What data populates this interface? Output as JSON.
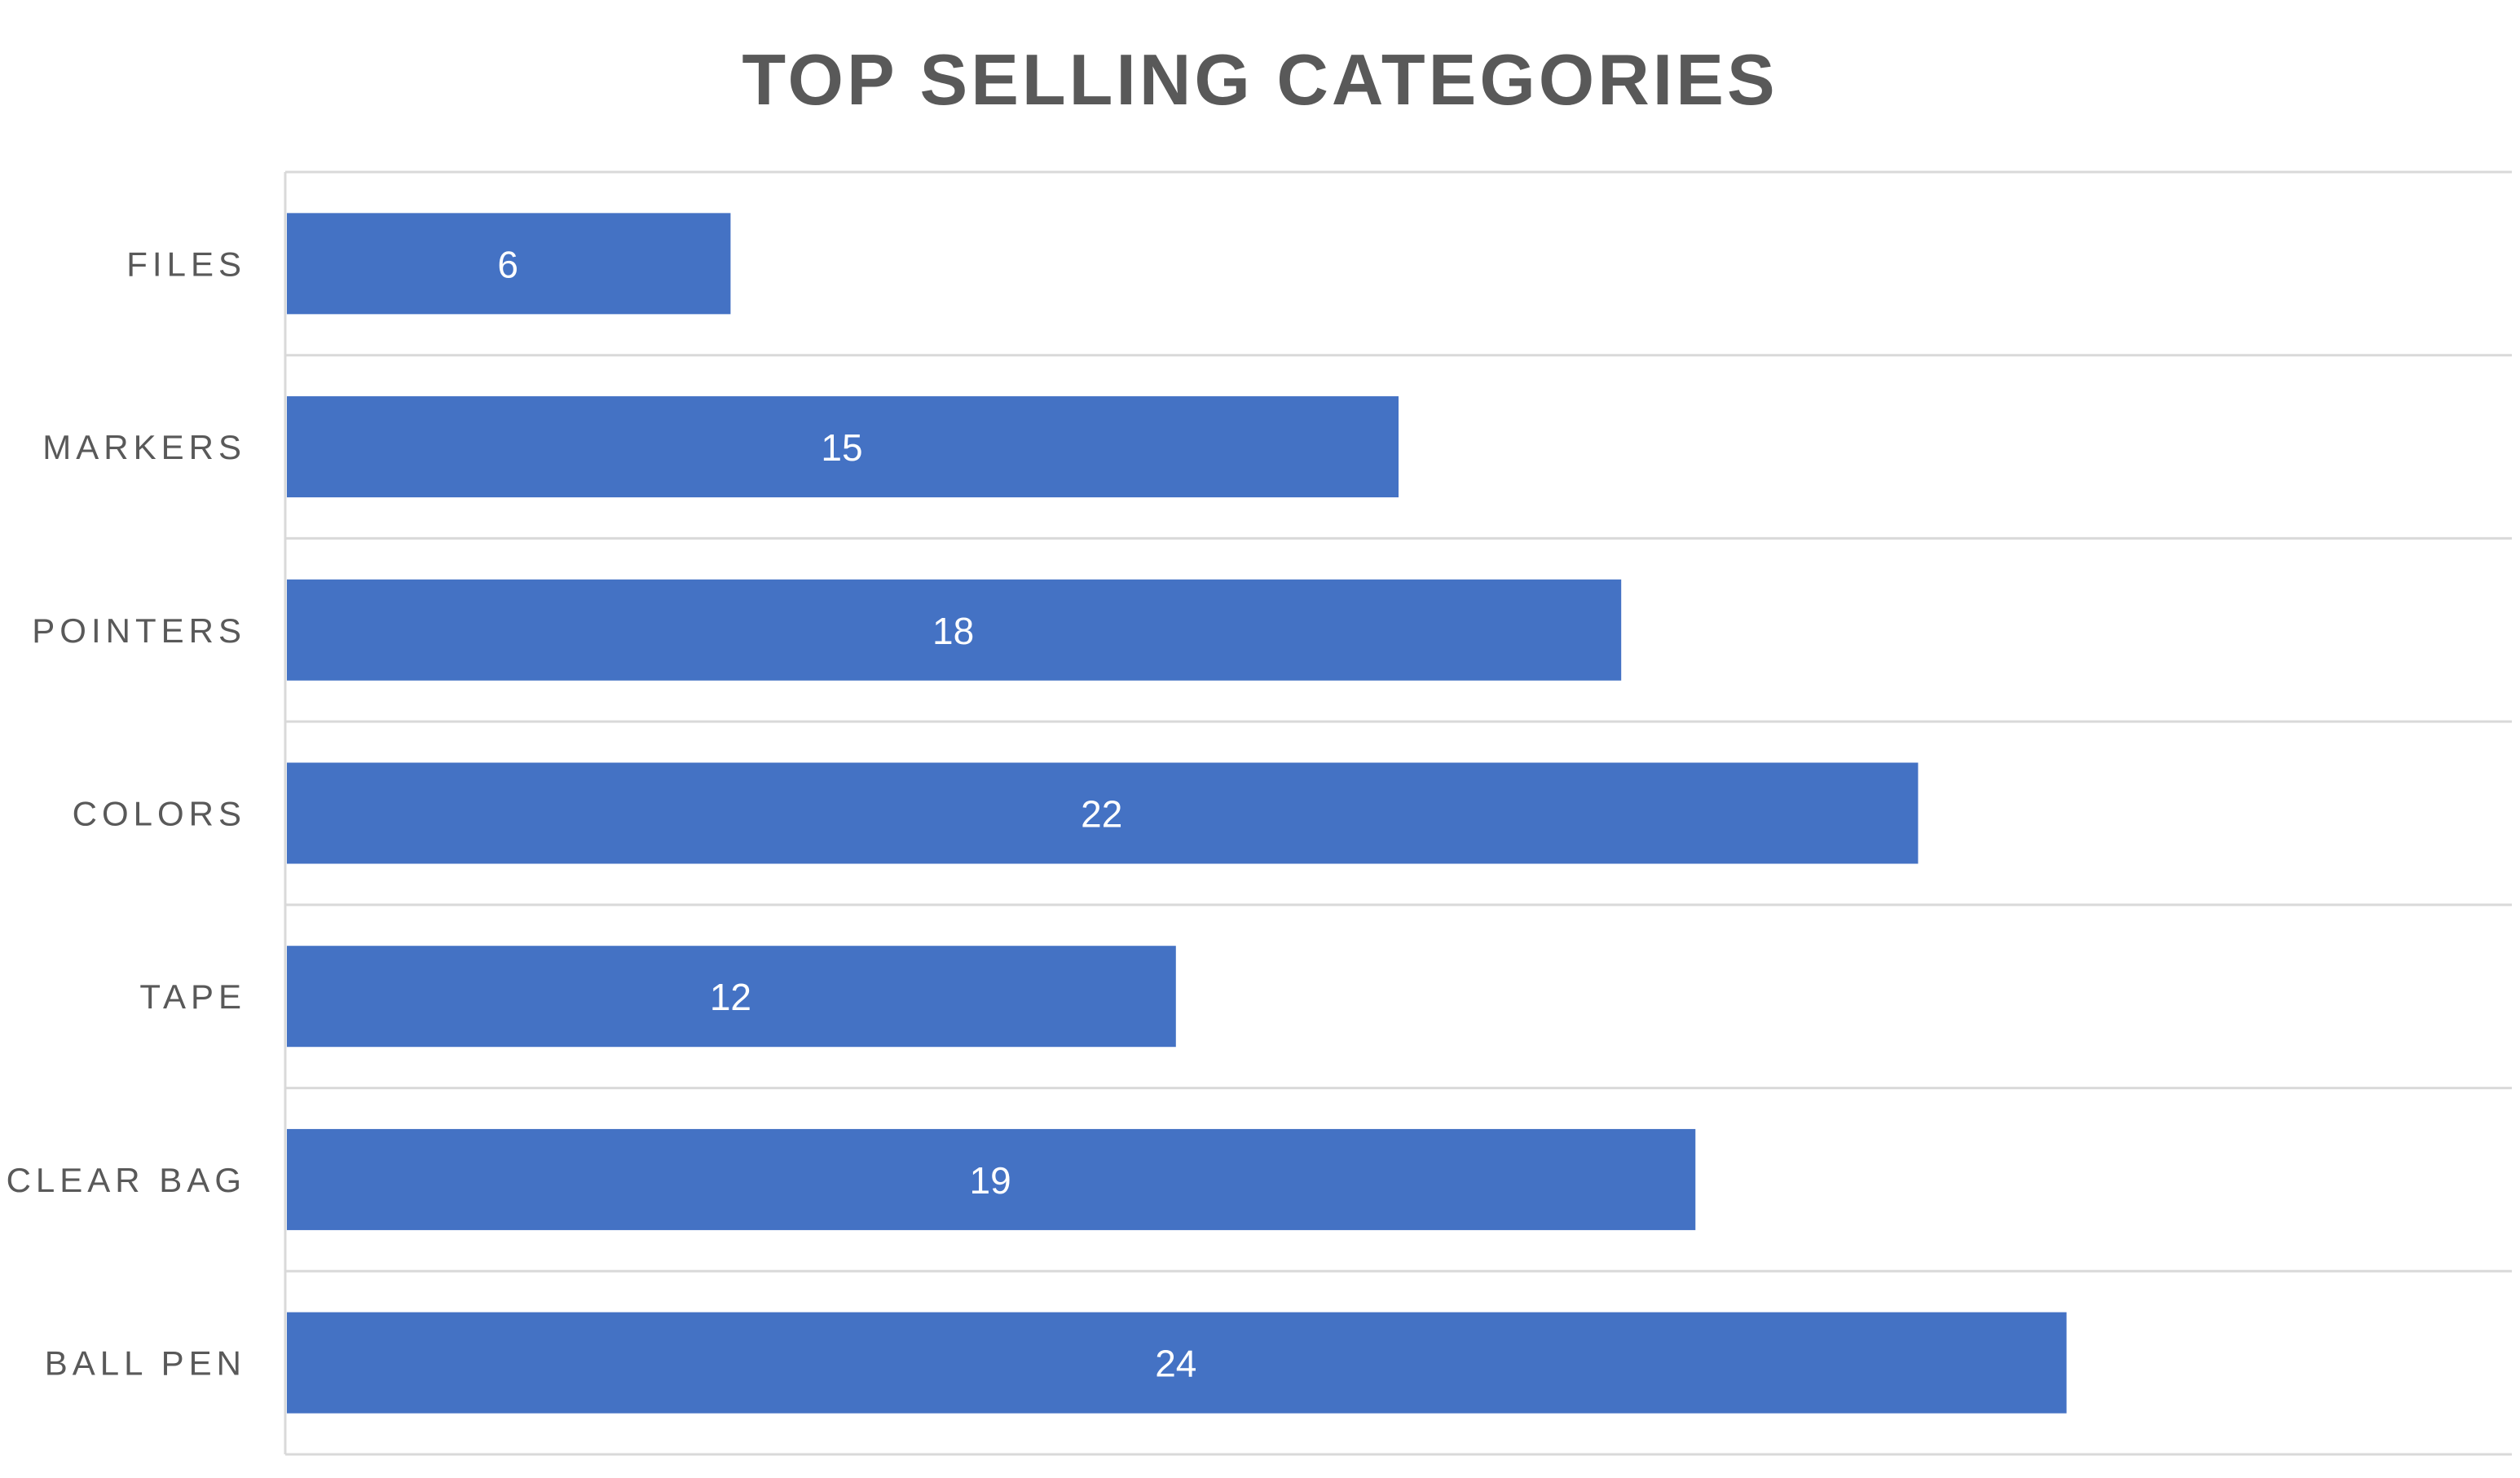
{
  "chart_data": {
    "type": "bar",
    "orientation": "horizontal",
    "title": "TOP SELLING CATEGORIES",
    "categories": [
      "FILES",
      "MARKERS",
      "POINTERS",
      "COLORS",
      "TAPE",
      "CLEAR BAG",
      "BALL PEN"
    ],
    "values": [
      6,
      15,
      18,
      22,
      12,
      19,
      24
    ],
    "xlim": [
      0,
      30
    ],
    "grid": true,
    "data_labels": true,
    "bar_color": "#4472C4",
    "grid_color": "#D9D9D9",
    "text_color": "#595959"
  }
}
